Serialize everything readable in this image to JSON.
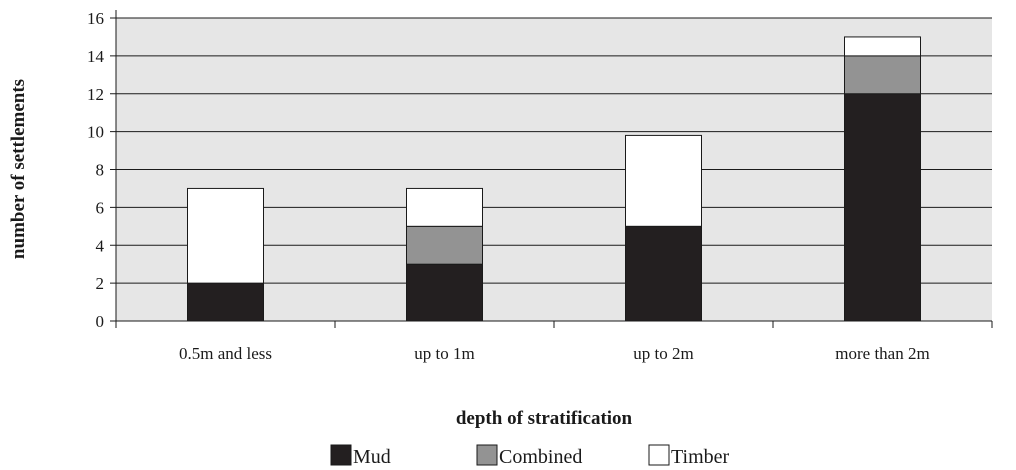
{
  "chart_data": {
    "type": "bar",
    "stacked": true,
    "categories": [
      "0.5m and less",
      "up to 1m",
      "up to 2m",
      "more than 2m"
    ],
    "series": [
      {
        "name": "Mud",
        "values": [
          2,
          3,
          5,
          12
        ],
        "color": "#231f20"
      },
      {
        "name": "Combined",
        "values": [
          0,
          2,
          0,
          2
        ],
        "color": "#939393"
      },
      {
        "name": "Timber",
        "values": [
          5,
          2,
          4.8,
          1
        ],
        "color": "#ffffff"
      }
    ],
    "xlabel": "depth of stratification",
    "ylabel": "number of settlements",
    "ylim": [
      0,
      16
    ],
    "yticks": [
      0,
      2,
      4,
      6,
      8,
      10,
      12,
      14,
      16
    ],
    "grid": true,
    "plot_background": "#e6e6e6",
    "legend_position": "bottom"
  }
}
